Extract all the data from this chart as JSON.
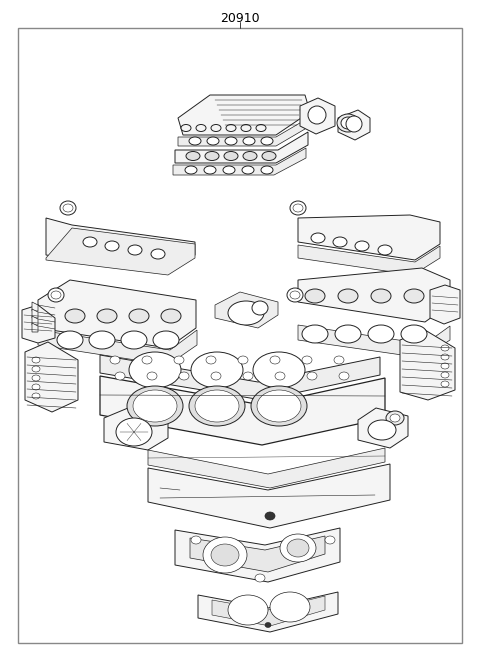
{
  "title": "20910",
  "fig_width": 4.8,
  "fig_height": 6.56,
  "dpi": 100,
  "bg": "#ffffff",
  "border_lw": 1.0,
  "border_color": "#888888",
  "title_fontsize": 9,
  "line_color": "#222222",
  "lw_main": 0.7,
  "lw_thin": 0.4,
  "lw_thick": 0.9,
  "fc_part": "#f5f5f5",
  "fc_gasket": "#eeeeee",
  "fc_white": "#ffffff"
}
